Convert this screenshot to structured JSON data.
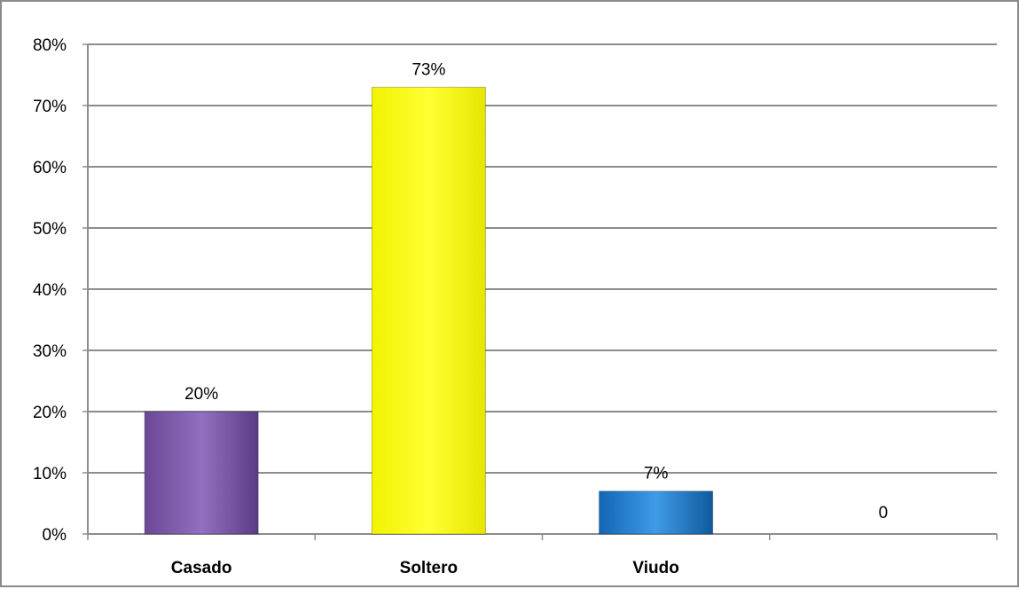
{
  "chart_data": {
    "type": "bar",
    "categories": [
      "Casado",
      "Soltero",
      "Viudo",
      ""
    ],
    "values": [
      20,
      73,
      7,
      0
    ],
    "data_labels": [
      "20%",
      "73%",
      "7%",
      "0"
    ],
    "colors": [
      "#7b58a6",
      "#ffff00",
      "#1f7fd0",
      "#ffffff"
    ],
    "title": "",
    "xlabel": "",
    "ylabel": "",
    "ylim": [
      0,
      80
    ],
    "yticks": [
      0,
      10,
      20,
      30,
      40,
      50,
      60,
      70,
      80
    ],
    "ytick_labels": [
      "0%",
      "10%",
      "20%",
      "30%",
      "40%",
      "50%",
      "60%",
      "70%",
      "80%"
    ],
    "grid": "horizontal",
    "legend": "none"
  }
}
